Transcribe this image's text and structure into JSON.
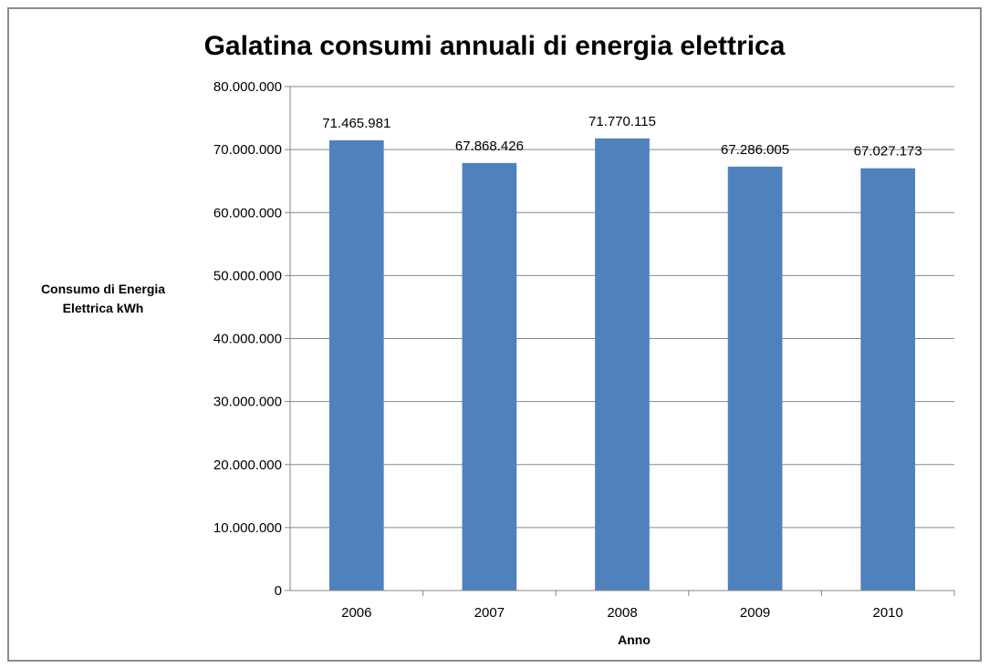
{
  "chart_data": {
    "type": "bar",
    "title": "Galatina consumi annuali di energia elettrica",
    "xlabel": "Anno",
    "ylabel_lines": [
      "Consumo di Energia",
      "Elettrica kWh"
    ],
    "categories": [
      "2006",
      "2007",
      "2008",
      "2009",
      "2010"
    ],
    "values": [
      71465981,
      67868426,
      71770115,
      67286005,
      67027173
    ],
    "value_labels": [
      "71.465.981",
      "67.868.426",
      "71.770.115",
      "67.286.005",
      "67.027.173"
    ],
    "ylim": [
      0,
      80000000
    ],
    "yticks": [
      0,
      10000000,
      20000000,
      30000000,
      40000000,
      50000000,
      60000000,
      70000000,
      80000000
    ],
    "ytick_labels": [
      "0",
      "10.000.000",
      "20.000.000",
      "30.000.000",
      "40.000.000",
      "50.000.000",
      "60.000.000",
      "70.000.000",
      "80.000.000"
    ],
    "grid": true,
    "legend": "none",
    "colors": {
      "bar": "#4f81bd",
      "grid": "#878787",
      "axis": "#878787"
    }
  }
}
